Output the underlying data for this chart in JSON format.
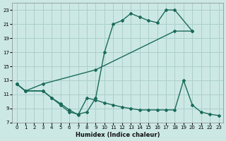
{
  "bg_color": "#cce8e5",
  "grid_color": "#aacfcc",
  "line_color": "#1a6b5a",
  "xlabel": "Humidex (Indice chaleur)",
  "xlim": [
    -0.5,
    23.5
  ],
  "ylim": [
    7,
    24
  ],
  "yticks": [
    7,
    9,
    11,
    13,
    15,
    17,
    19,
    21,
    23
  ],
  "xticks": [
    0,
    1,
    2,
    3,
    4,
    5,
    6,
    7,
    8,
    9,
    10,
    11,
    12,
    13,
    14,
    15,
    16,
    17,
    18,
    19,
    20,
    21,
    22,
    23
  ],
  "line1_x": [
    0,
    1,
    3,
    4,
    5,
    6,
    7,
    8,
    9,
    10,
    11,
    12,
    13,
    14,
    15,
    16,
    17,
    18,
    20
  ],
  "line1_y": [
    12.5,
    11.5,
    11.5,
    10.5,
    9.5,
    8.5,
    8.2,
    8.5,
    10.5,
    17,
    21,
    21.5,
    22.5,
    22,
    21.5,
    21.2,
    23,
    23,
    20
  ],
  "line2_x": [
    0,
    1,
    3,
    9,
    18,
    20
  ],
  "line2_y": [
    12.5,
    11.5,
    12.5,
    14.5,
    20,
    20
  ],
  "line3_x": [
    0,
    1,
    3,
    4,
    5,
    6,
    7,
    8,
    9,
    10,
    11,
    12,
    13,
    14,
    15,
    16,
    17,
    18,
    19,
    20,
    21,
    22,
    23
  ],
  "line3_y": [
    12.5,
    11.5,
    11.5,
    10.5,
    9.7,
    8.8,
    8.1,
    10.5,
    10.2,
    9.8,
    9.5,
    9.2,
    9.0,
    8.8,
    8.8,
    8.8,
    8.8,
    8.8,
    13,
    9.5,
    8.5,
    8.2,
    8.0
  ]
}
